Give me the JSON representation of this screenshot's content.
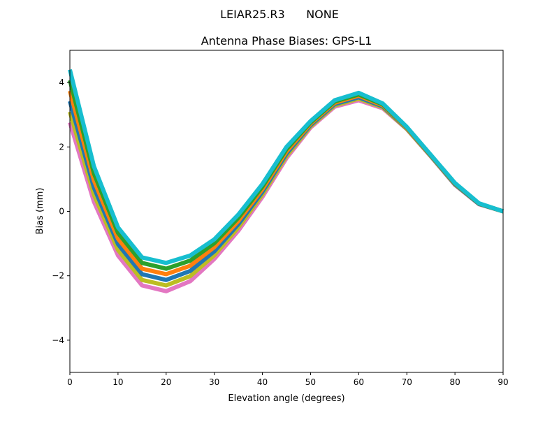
{
  "chart_data": {
    "type": "line",
    "suptitle": "LEIAR25.R3      NONE",
    "title": "Antenna Phase Biases: GPS-L1",
    "xlabel": "Elevation angle (degrees)",
    "ylabel": "Bias (mm)",
    "xlim": [
      0,
      90
    ],
    "ylim": [
      -5,
      5
    ],
    "xticks": [
      0,
      10,
      20,
      30,
      40,
      50,
      60,
      70,
      80,
      90
    ],
    "yticks": [
      -4,
      -2,
      0,
      2,
      4
    ],
    "ytick_labels": [
      "−4",
      "−2",
      "0",
      "2",
      "4"
    ],
    "grid": false,
    "legend": "none",
    "x": [
      0,
      5,
      10,
      15,
      20,
      25,
      30,
      35,
      40,
      45,
      50,
      55,
      60,
      65,
      70,
      75,
      80,
      85,
      90
    ],
    "colors": [
      "#e377c2",
      "#bcbd22",
      "#1f77b4",
      "#ff7f0e",
      "#2ca02c",
      "#17becf",
      "#7f7f7f",
      "#d62728",
      "#9467bd",
      "#8c564b"
    ],
    "series": [
      {
        "values": [
          2.76,
          0.3,
          -1.37,
          -2.3,
          -2.48,
          -2.17,
          -1.48,
          -0.6,
          0.45,
          1.65,
          2.6,
          3.25,
          3.45,
          3.2,
          2.55,
          1.7,
          0.82,
          0.22,
          0
        ]
      },
      {
        "values": [
          3.09,
          0.52,
          -1.2,
          -2.13,
          -2.3,
          -2.01,
          -1.36,
          -0.5,
          0.53,
          1.72,
          2.64,
          3.29,
          3.5,
          3.23,
          2.56,
          1.71,
          0.83,
          0.23,
          0
        ]
      },
      {
        "values": [
          3.42,
          0.74,
          -1.02,
          -1.95,
          -2.13,
          -1.85,
          -1.24,
          -0.4,
          0.61,
          1.79,
          2.68,
          3.33,
          3.54,
          3.26,
          2.58,
          1.72,
          0.84,
          0.23,
          0
        ]
      },
      {
        "values": [
          3.74,
          0.96,
          -0.85,
          -1.78,
          -1.95,
          -1.69,
          -1.11,
          -0.3,
          0.69,
          1.86,
          2.72,
          3.37,
          3.59,
          3.29,
          2.59,
          1.73,
          0.86,
          0.24,
          0
        ]
      },
      {
        "values": [
          4.07,
          1.18,
          -0.67,
          -1.6,
          -1.78,
          -1.53,
          -0.99,
          -0.2,
          0.77,
          1.93,
          2.76,
          3.41,
          3.63,
          3.32,
          2.61,
          1.74,
          0.87,
          0.24,
          0
        ]
      },
      {
        "values": [
          4.4,
          1.4,
          -0.5,
          -1.43,
          -1.6,
          -1.37,
          -0.87,
          -0.1,
          0.85,
          2.0,
          2.8,
          3.45,
          3.68,
          3.35,
          2.62,
          1.75,
          0.88,
          0.25,
          0
        ]
      }
    ]
  }
}
